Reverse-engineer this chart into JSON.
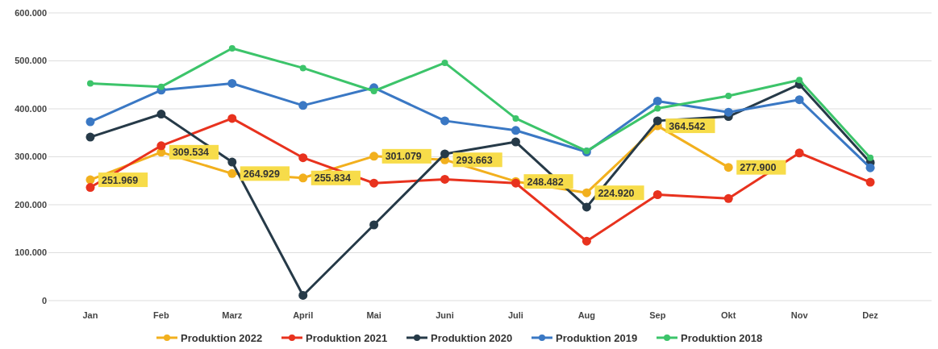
{
  "chart_data": {
    "type": "line",
    "categories": [
      "Jan",
      "Feb",
      "Marz",
      "April",
      "Mai",
      "Juni",
      "Juli",
      "Aug",
      "Sep",
      "Okt",
      "Nov",
      "Dez"
    ],
    "ylim": [
      0,
      600000
    ],
    "yticks": [
      {
        "value": 0,
        "label": "0"
      },
      {
        "value": 100000,
        "label": "100.000"
      },
      {
        "value": 200000,
        "label": "200.000"
      },
      {
        "value": 300000,
        "label": "300.000"
      },
      {
        "value": 400000,
        "label": "400.000"
      },
      {
        "value": 500000,
        "label": "500.000"
      },
      {
        "value": 600000,
        "label": "600.000"
      }
    ],
    "grid": "y",
    "legend": "bottom",
    "marker": "circle",
    "line_style": "solid",
    "series": [
      {
        "name": "Produktion 2022",
        "color": "#f2b01e",
        "values": [
          251969,
          309534,
          264929,
          255834,
          301079,
          293663,
          248482,
          224920,
          364542,
          277900,
          null,
          null
        ],
        "value_labels": [
          "251.969",
          "309.534",
          "264.929",
          "255.834",
          "301.079",
          "293.663",
          "248.482",
          "224.920",
          "364.542",
          "277.900",
          null,
          null
        ]
      },
      {
        "name": "Produktion 2021",
        "color": "#e8321e",
        "values": [
          236000,
          323000,
          380000,
          298000,
          245000,
          253000,
          245000,
          124000,
          221000,
          213000,
          308000,
          247000
        ]
      },
      {
        "name": "Produktion 2020",
        "color": "#263a48",
        "values": [
          341000,
          389000,
          289000,
          11000,
          158000,
          306000,
          331000,
          195000,
          375000,
          384000,
          451000,
          288000
        ]
      },
      {
        "name": "Produktion 2019",
        "color": "#3a78c4",
        "values": [
          373000,
          439000,
          453000,
          407000,
          444000,
          375000,
          355000,
          310000,
          416000,
          393000,
          419000,
          277000
        ]
      },
      {
        "name": "Produktion 2018",
        "color": "#3cc46a",
        "values": [
          453000,
          446000,
          526000,
          485000,
          437000,
          496000,
          380000,
          312000,
          401000,
          427000,
          460000,
          298000
        ]
      }
    ]
  }
}
